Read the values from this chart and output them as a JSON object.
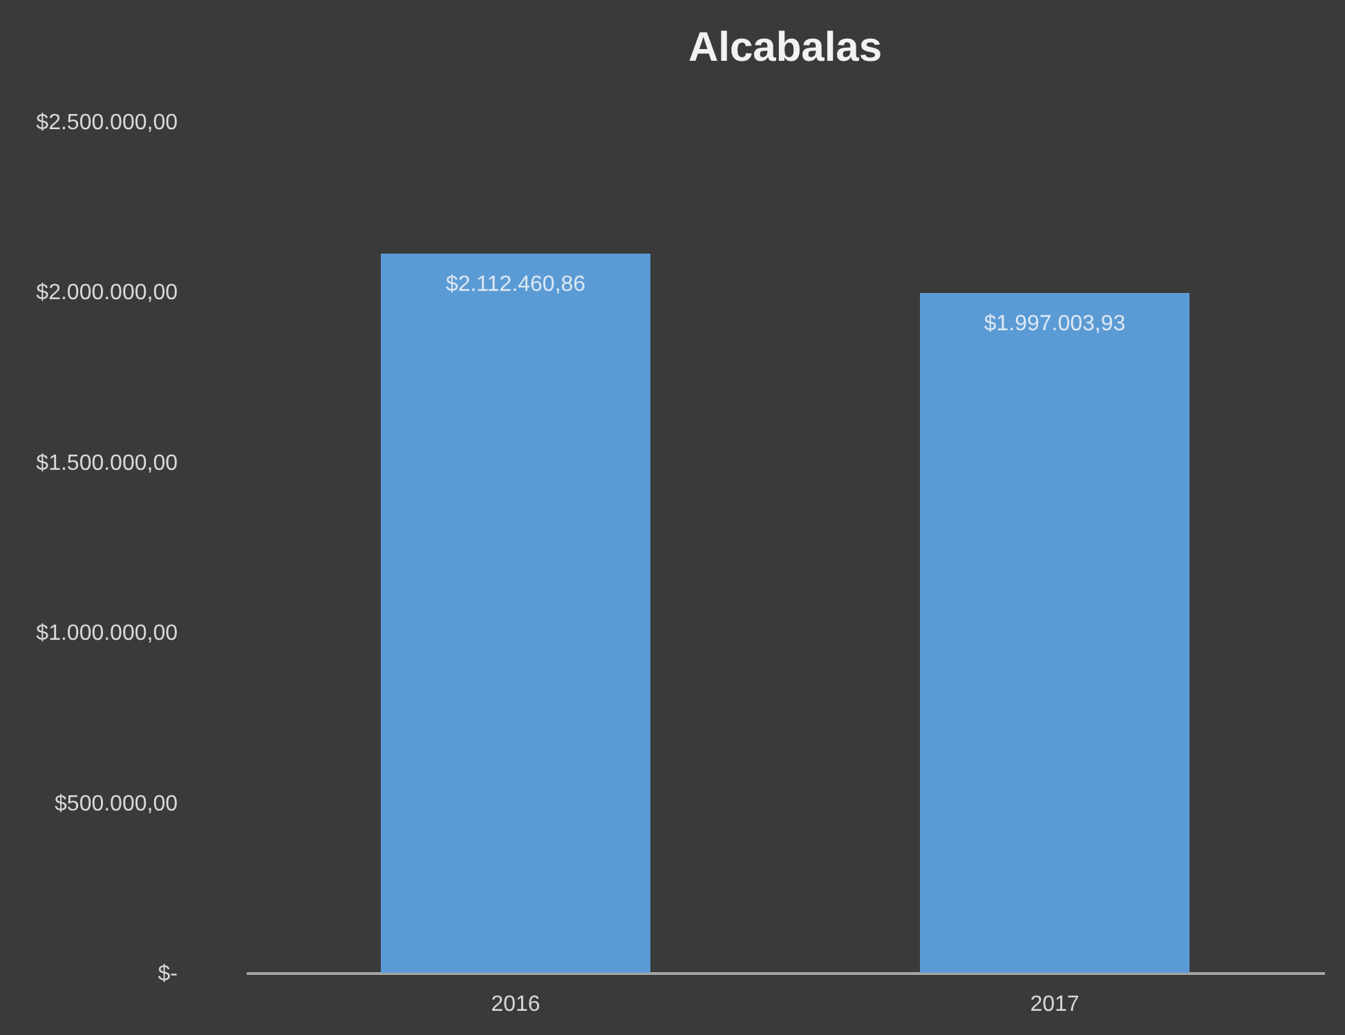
{
  "chart_data": {
    "type": "bar",
    "title": "Alcabalas",
    "categories": [
      "2016",
      "2017"
    ],
    "values": [
      2112460.86,
      1997003.93
    ],
    "color": "#5b9bd5",
    "value_labels": [
      "$2.112.460,86",
      "$1.997.003,93"
    ],
    "ylim": [
      0,
      2500000
    ],
    "yticks": [
      {
        "value": 0,
        "label": "$-"
      },
      {
        "value": 500000,
        "label": "$500.000,00"
      },
      {
        "value": 1000000,
        "label": "$1.000.000,00"
      },
      {
        "value": 1500000,
        "label": "$1.500.000,00"
      },
      {
        "value": 2000000,
        "label": "$2.000.000,00"
      },
      {
        "value": 2500000,
        "label": "$2.500.000,00"
      }
    ],
    "grid": false
  }
}
